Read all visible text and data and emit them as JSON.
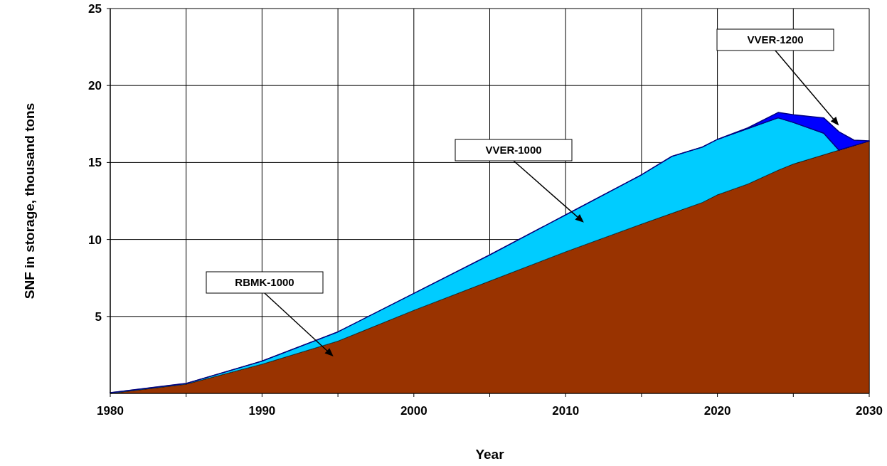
{
  "chart_data": {
    "type": "area",
    "stacked": true,
    "xlabel": "Year",
    "ylabel": "SNF in storage, thousand tons",
    "x": [
      1980,
      1985,
      1990,
      1995,
      2000,
      2005,
      2010,
      2015,
      2017,
      2019,
      2020,
      2022,
      2024,
      2025,
      2027,
      2028,
      2029,
      2030
    ],
    "series": [
      {
        "name": "RBMK-1000",
        "color": "#993300",
        "values": [
          0,
          0.6,
          1.9,
          3.4,
          5.4,
          7.3,
          9.2,
          11.0,
          11.7,
          12.4,
          12.9,
          13.6,
          14.5,
          14.9,
          15.5,
          15.8,
          16.1,
          16.4
        ]
      },
      {
        "name": "VVER-1000",
        "color": "#00ccff",
        "values": [
          0.05,
          0.05,
          0.2,
          0.6,
          1.1,
          1.7,
          2.4,
          3.2,
          3.7,
          3.6,
          3.6,
          3.6,
          3.4,
          2.7,
          1.4,
          0,
          0,
          0
        ]
      },
      {
        "name": "VVER-1200",
        "color": "#0000ff",
        "values": [
          0,
          0,
          0,
          0,
          0,
          0,
          0,
          0,
          0,
          0,
          0,
          0.05,
          0.35,
          0.5,
          1.0,
          1.2,
          0.35,
          0
        ]
      }
    ],
    "xlim": [
      1980,
      2030
    ],
    "xticks": [
      1980,
      {
        "value": 1985,
        "label": null
      },
      1990,
      {
        "value": 1995,
        "label": null
      },
      2000,
      {
        "value": 2005,
        "label": null
      },
      2010,
      {
        "value": 2015,
        "label": null
      },
      2020,
      {
        "value": 2025,
        "label": null
      },
      2030
    ],
    "ylim": [
      0,
      25
    ],
    "yticks": [
      5,
      10,
      15,
      20,
      25
    ],
    "grid": true
  }
}
